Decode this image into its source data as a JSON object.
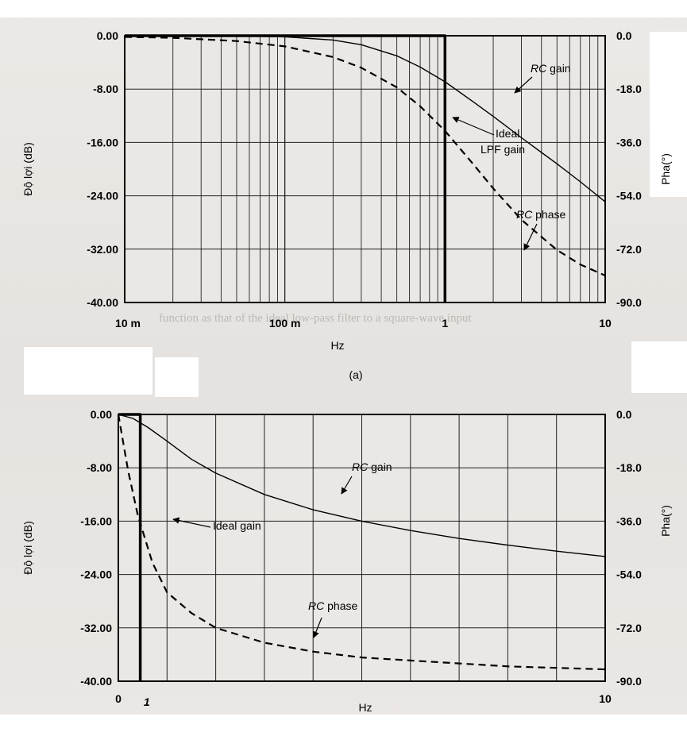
{
  "chart_data": [
    {
      "id": "a",
      "type": "line",
      "caption": "(a)",
      "x_scale": "log",
      "xlim": [
        0.01,
        10
      ],
      "x_ticks": [
        "10 m",
        "100 m",
        "1",
        "10"
      ],
      "xlabel": "Hz",
      "ylabel": "Độ lợi (dB)",
      "ylabel_right": "Pha(°)",
      "ylim": [
        -40,
        0
      ],
      "ylim_right": [
        -90,
        0
      ],
      "y_ticks": [
        "0.00",
        "-8.00",
        "-16.00",
        "-24.00",
        "-32.00",
        "-40.00"
      ],
      "y_ticks_right": [
        "0.0",
        "-18.0",
        "-36.0",
        "-54.0",
        "-72.0",
        "-90.0"
      ],
      "grid": true,
      "series": [
        {
          "name": "RC gain",
          "style": "solid",
          "axis": "left",
          "x": [
            0.01,
            0.05,
            0.1,
            0.2,
            0.3,
            0.5,
            0.7,
            1,
            1.5,
            2,
            3,
            4,
            5,
            7,
            10
          ],
          "y": [
            0,
            -0.04,
            -0.17,
            -0.64,
            -1.34,
            -3.01,
            -4.7,
            -6.9,
            -9.9,
            -12.1,
            -15.3,
            -17.5,
            -19.2,
            -21.9,
            -24.9
          ]
        },
        {
          "name": "RC phase",
          "style": "dashed",
          "axis": "right",
          "x": [
            0.01,
            0.02,
            0.05,
            0.1,
            0.2,
            0.3,
            0.5,
            0.7,
            1,
            1.5,
            2,
            3,
            5,
            7,
            10
          ],
          "y": [
            -0.4,
            -0.7,
            -1.8,
            -3.6,
            -7.2,
            -10.8,
            -17.4,
            -23.8,
            -32.1,
            -43.3,
            -51.5,
            -62.1,
            -72.3,
            -77.2,
            -80.9
          ]
        },
        {
          "name": "Ideal LPF gain",
          "style": "thick",
          "axis": "left",
          "x": [
            0.01,
            1,
            1
          ],
          "y": [
            0,
            0,
            -40
          ]
        }
      ],
      "annotations": [
        "RC gain",
        "Ideal",
        "LPF gain",
        "RC phase"
      ]
    },
    {
      "id": "b",
      "type": "line",
      "x_scale": "linear",
      "xlim": [
        0,
        10
      ],
      "x_ticks": [
        "0",
        "10"
      ],
      "x_marker_label": "1",
      "xlabel": "Hz",
      "ylabel": "Độ lợi (dB)",
      "ylabel_right": "Pha(°)",
      "ylim": [
        -40,
        0
      ],
      "ylim_right": [
        -90,
        0
      ],
      "y_ticks": [
        "0.00",
        "-8.00",
        "-16.00",
        "-24.00",
        "-32.00",
        "-40.00"
      ],
      "y_ticks_right": [
        "0.0",
        "-18.0",
        "-36.0",
        "-54.0",
        "-72.0",
        "-90.0"
      ],
      "grid": true,
      "series": [
        {
          "name": "RC gain",
          "style": "solid",
          "axis": "left",
          "x": [
            0,
            0.3,
            0.6,
            1,
            1.5,
            2,
            3,
            4,
            5,
            6,
            7,
            8,
            9,
            10
          ],
          "y": [
            0,
            -0.6,
            -1.9,
            -4.0,
            -6.7,
            -8.8,
            -12.0,
            -14.3,
            -16.0,
            -17.4,
            -18.6,
            -19.6,
            -20.5,
            -21.3
          ]
        },
        {
          "name": "RC phase",
          "style": "dashed",
          "axis": "right",
          "x": [
            0,
            0.2,
            0.4,
            0.7,
            1,
            1.5,
            2,
            3,
            4,
            5,
            6,
            7,
            8,
            9,
            10
          ],
          "y": [
            0,
            -19,
            -34,
            -50,
            -60,
            -67,
            -72,
            -77,
            -80,
            -82,
            -83,
            -84,
            -85,
            -85.5,
            -86
          ]
        },
        {
          "name": "Ideal gain",
          "style": "thick",
          "axis": "left",
          "x": [
            0,
            0.45,
            0.45
          ],
          "y": [
            0,
            0,
            -40
          ]
        }
      ],
      "annotations": [
        "RC gain",
        "Ideal gain",
        "RC phase"
      ]
    }
  ]
}
